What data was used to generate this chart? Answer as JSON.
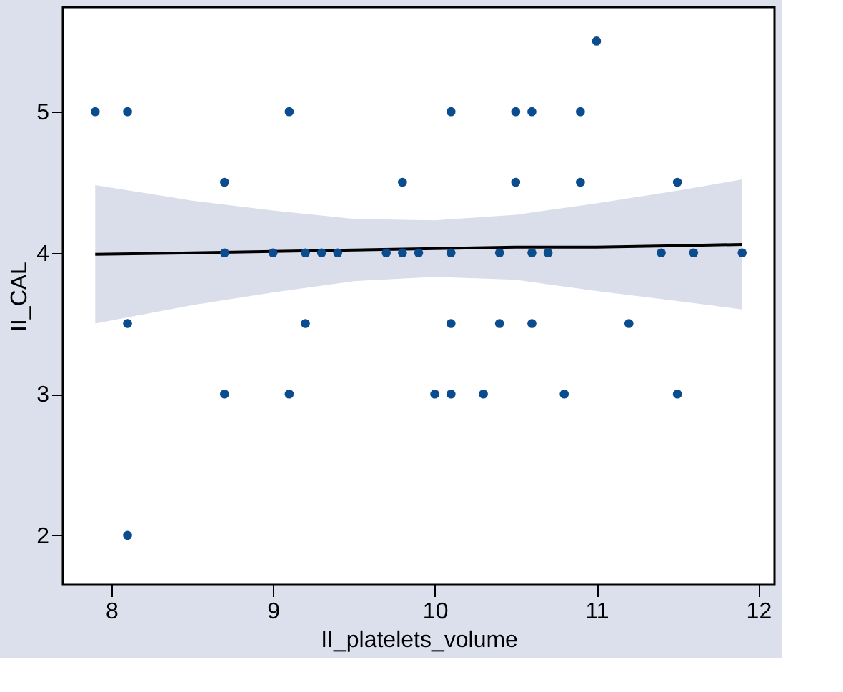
{
  "chart_data": {
    "type": "scatter",
    "xlabel": "II_platelets_volume",
    "ylabel": "II_CAL",
    "xlim": [
      7.7,
      12.1
    ],
    "ylim": [
      1.65,
      5.74
    ],
    "xticks": [
      8,
      9,
      10,
      11,
      12
    ],
    "yticks": [
      2,
      3,
      4,
      5
    ],
    "grid": false,
    "series": [
      {
        "type": "scatter",
        "marker": "circle",
        "color": "#0b4c8f",
        "x": [
          7.9,
          8.1,
          9.1,
          10.1,
          10.5,
          10.6,
          10.9,
          11.0,
          8.7,
          9.8,
          10.5,
          10.9,
          11.5,
          8.7,
          9.0,
          9.2,
          9.3,
          9.4,
          9.7,
          9.8,
          9.9,
          10.1,
          10.4,
          10.6,
          10.7,
          11.4,
          11.6,
          11.9,
          8.1,
          9.2,
          10.1,
          10.4,
          10.6,
          11.2,
          8.7,
          9.1,
          10.0,
          10.1,
          10.3,
          10.8,
          11.5,
          8.1
        ],
        "values": [
          5,
          5,
          5,
          5,
          5,
          5,
          5,
          5.5,
          4.5,
          4.5,
          4.5,
          4.5,
          4.5,
          4,
          4,
          4,
          4,
          4,
          4,
          4,
          4,
          4,
          4,
          4,
          4,
          4,
          4,
          4,
          3.5,
          3.5,
          3.5,
          3.5,
          3.5,
          3.5,
          3,
          3,
          3,
          3,
          3,
          3,
          3,
          2
        ]
      },
      {
        "type": "line",
        "color": "#000000",
        "line_style": "solid",
        "x": [
          7.9,
          8.5,
          9.0,
          9.5,
          10.0,
          10.5,
          11.0,
          11.5,
          11.9
        ],
        "values": [
          3.99,
          4.0,
          4.01,
          4.02,
          4.03,
          4.04,
          4.04,
          4.05,
          4.06
        ],
        "lower": [
          3.5,
          3.63,
          3.72,
          3.8,
          3.83,
          3.81,
          3.73,
          3.66,
          3.6
        ],
        "upper": [
          4.48,
          4.37,
          4.3,
          4.24,
          4.23,
          4.27,
          4.35,
          4.44,
          4.52
        ]
      }
    ]
  }
}
